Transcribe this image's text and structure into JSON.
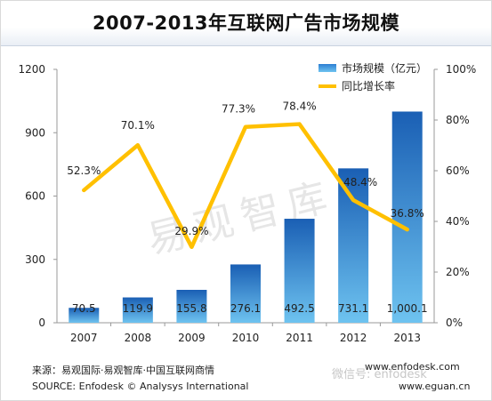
{
  "title": "2007-2013年互联网广告市场规模",
  "chart_data": {
    "type": "bar",
    "categories": [
      "2007",
      "2008",
      "2009",
      "2010",
      "2011",
      "2012",
      "2013"
    ],
    "series": [
      {
        "name": "市场规模（亿元）",
        "type": "bar",
        "axis": "left",
        "values": [
          70.5,
          119.9,
          155.8,
          276.1,
          492.5,
          731.1,
          1000.1
        ],
        "labels": [
          "70.5",
          "119.9",
          "155.8",
          "276.1",
          "492.5",
          "731.1",
          "1,000.1"
        ]
      },
      {
        "name": "同比增长率",
        "type": "line",
        "axis": "right",
        "values": [
          52.3,
          70.1,
          29.9,
          77.3,
          78.4,
          48.4,
          36.8
        ],
        "labels": [
          "52.3%",
          "70.1%",
          "29.9%",
          "77.3%",
          "78.4%",
          "48.4%",
          "36.8%"
        ]
      }
    ],
    "ylim_left": [
      0,
      1200
    ],
    "yticks_left": [
      "0",
      "300",
      "600",
      "900",
      "1200"
    ],
    "ylim_right": [
      0,
      100
    ],
    "yticks_right": [
      "0%",
      "20%",
      "40%",
      "60%",
      "80%",
      "100%"
    ],
    "legend_position": "top-right",
    "grid": false
  },
  "colors": {
    "bar_top": "#1a5fb4",
    "bar_bottom": "#6ec3f0",
    "line": "#ffc000"
  },
  "watermark": "易观智库",
  "footer": {
    "source_cn": "来源：易观国际·易观智库·中国互联网商情",
    "source_en": "SOURCE: Enfodesk © Analysys International",
    "url1": "www.enfodesk.com",
    "url2": "www.eguan.cn",
    "wechat": "微信号: enfodesk"
  }
}
